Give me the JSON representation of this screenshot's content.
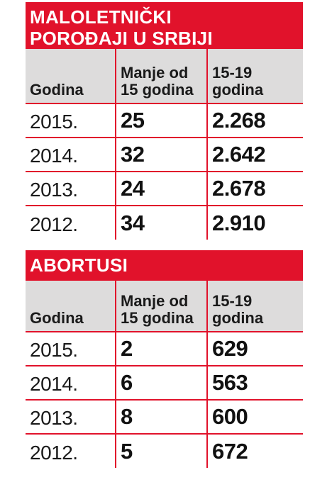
{
  "chart_data": [
    {
      "type": "table",
      "title_lines": [
        "MALOLETNIČKI",
        "POROĐAJI U SRBIJI"
      ],
      "header": {
        "col1": "Godina",
        "col2_lines": [
          "Manje od",
          "15 godina"
        ],
        "col3_lines": [
          "15-19",
          "godina"
        ]
      },
      "rows": [
        {
          "year": "2015.",
          "under15": "25",
          "age15_19": "2.268"
        },
        {
          "year": "2014.",
          "under15": "32",
          "age15_19": "2.642"
        },
        {
          "year": "2013.",
          "under15": "24",
          "age15_19": "2.678"
        },
        {
          "year": "2012.",
          "under15": "34",
          "age15_19": "2.910"
        }
      ]
    },
    {
      "type": "table",
      "title_lines": [
        "ABORTUSI"
      ],
      "header": {
        "col1": "Godina",
        "col2_lines": [
          "Manje od",
          "15 godina"
        ],
        "col3_lines": [
          "15-19",
          "godina"
        ]
      },
      "rows": [
        {
          "year": "2015.",
          "under15": "2",
          "age15_19": "629"
        },
        {
          "year": "2014.",
          "under15": "6",
          "age15_19": "563"
        },
        {
          "year": "2013.",
          "under15": "8",
          "age15_19": "600"
        },
        {
          "year": "2012.",
          "under15": "5",
          "age15_19": "672"
        }
      ]
    }
  ],
  "colors": {
    "accent_red": "#e1122b",
    "header_gray": "#dddcdc",
    "text": "#111111"
  }
}
